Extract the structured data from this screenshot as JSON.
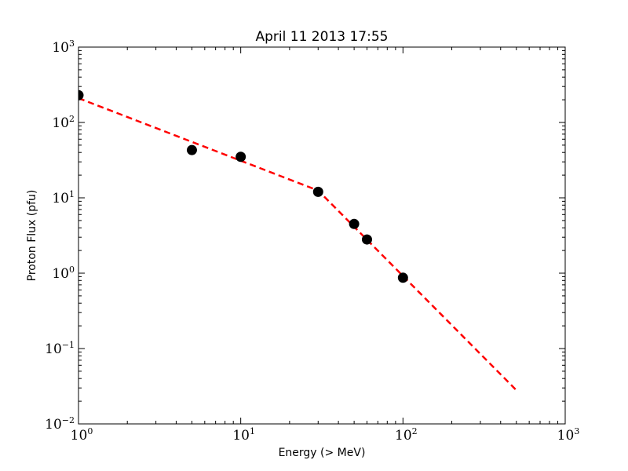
{
  "chart_data": {
    "type": "scatter",
    "title": "April 11 2013 17:55",
    "xlabel": "Energy (> MeV)",
    "ylabel": "Proton Flux (pfu)",
    "xscale": "log",
    "yscale": "log",
    "xlim": [
      1,
      1000
    ],
    "ylim": [
      0.01,
      1000
    ],
    "x_ticks": [
      {
        "value": 1,
        "base": "10",
        "exp": "0"
      },
      {
        "value": 10,
        "base": "10",
        "exp": "1"
      },
      {
        "value": 100,
        "base": "10",
        "exp": "2"
      },
      {
        "value": 1000,
        "base": "10",
        "exp": "3"
      }
    ],
    "y_ticks": [
      {
        "value": 0.01,
        "base": "10",
        "exp": "−2"
      },
      {
        "value": 0.1,
        "base": "10",
        "exp": "−1"
      },
      {
        "value": 1,
        "base": "10",
        "exp": "0"
      },
      {
        "value": 10,
        "base": "10",
        "exp": "1"
      },
      {
        "value": 100,
        "base": "10",
        "exp": "2"
      },
      {
        "value": 1000,
        "base": "10",
        "exp": "3"
      }
    ],
    "grid": false,
    "legend": "none",
    "series": [
      {
        "kind": "points",
        "color": "#000000",
        "points": [
          {
            "x": 1,
            "y": 230
          },
          {
            "x": 5,
            "y": 43
          },
          {
            "x": 10,
            "y": 35
          },
          {
            "x": 30,
            "y": 12
          },
          {
            "x": 50,
            "y": 4.5
          },
          {
            "x": 60,
            "y": 2.8
          },
          {
            "x": 100,
            "y": 0.87
          }
        ]
      },
      {
        "kind": "fit-line",
        "color": "#ff0000",
        "style": "dashed",
        "points": [
          {
            "x": 1,
            "y": 210
          },
          {
            "x": 30,
            "y": 12.5
          },
          {
            "x": 500,
            "y": 0.028
          }
        ]
      }
    ]
  }
}
